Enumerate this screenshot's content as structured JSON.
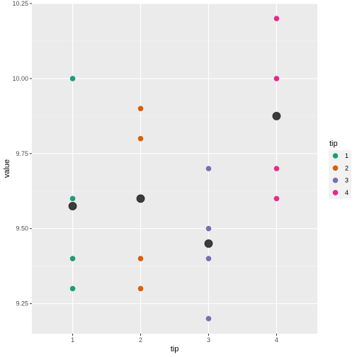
{
  "chart_data": {
    "type": "scatter",
    "xlabel": "tip",
    "ylabel": "value",
    "x_ticks": [
      "1",
      "2",
      "3",
      "4"
    ],
    "y_ticks": [
      "9.25",
      "9.50",
      "9.75",
      "10.00",
      "10.25"
    ],
    "xlim": [
      0.4,
      4.6
    ],
    "ylim": [
      9.15,
      10.25
    ],
    "grid": true,
    "legend": {
      "title": "tip",
      "placement": "right",
      "entries": [
        {
          "label": "1",
          "color": "#1b9e77"
        },
        {
          "label": "2",
          "color": "#d95f02"
        },
        {
          "label": "3",
          "color": "#7570b3"
        },
        {
          "label": "4",
          "color": "#e7298a"
        }
      ]
    },
    "series": [
      {
        "tip": 1,
        "color": "#1b9e77",
        "x": [
          1,
          1,
          1,
          1
        ],
        "y": [
          10.0,
          9.6,
          9.4,
          9.3
        ]
      },
      {
        "tip": 2,
        "color": "#d95f02",
        "x": [
          2,
          2,
          2,
          2
        ],
        "y": [
          9.9,
          9.8,
          9.4,
          9.3
        ]
      },
      {
        "tip": 3,
        "color": "#7570b3",
        "x": [
          3,
          3,
          3,
          3
        ],
        "y": [
          9.7,
          9.5,
          9.4,
          9.2
        ]
      },
      {
        "tip": 4,
        "color": "#e7298a",
        "x": [
          4,
          4,
          4,
          4
        ],
        "y": [
          10.2,
          10.0,
          9.7,
          9.6
        ]
      }
    ],
    "summary_points": {
      "color": "#333333",
      "x": [
        1,
        2,
        3,
        4
      ],
      "y": [
        9.575,
        9.6,
        9.45,
        9.875
      ]
    }
  }
}
